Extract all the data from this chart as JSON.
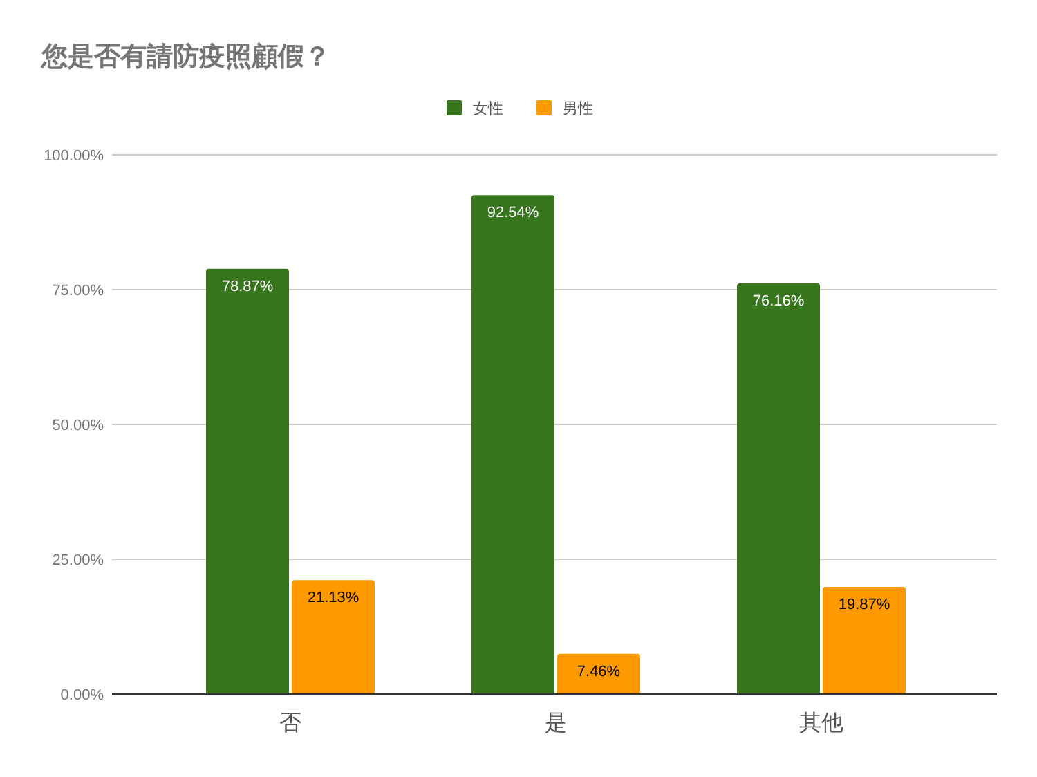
{
  "chart_data": {
    "type": "bar",
    "title": "您是否有請防疫照顧假？",
    "categories": [
      "否",
      "是",
      "其他"
    ],
    "series": [
      {
        "name": "女性",
        "color": "#38761d",
        "values": [
          78.87,
          92.54,
          76.16
        ],
        "value_labels": [
          "78.87%",
          "92.54%",
          "76.16%"
        ]
      },
      {
        "name": "男性",
        "color": "#ff9900",
        "values": [
          21.13,
          7.46,
          19.87
        ],
        "value_labels": [
          "21.13%",
          "7.46%",
          "19.87%"
        ]
      }
    ],
    "ylim": [
      0,
      100
    ],
    "yticks": [
      {
        "value": 0,
        "label": "0.00%"
      },
      {
        "value": 25,
        "label": "25.00%"
      },
      {
        "value": 50,
        "label": "50.00%"
      },
      {
        "value": 75,
        "label": "75.00%"
      },
      {
        "value": 100,
        "label": "100.00%"
      }
    ],
    "grid": "y",
    "legend": "top"
  }
}
